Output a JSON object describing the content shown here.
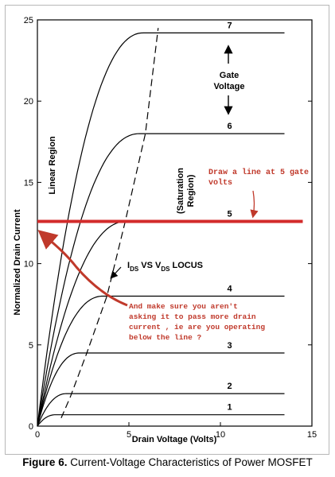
{
  "chart_data": {
    "type": "line",
    "title": "",
    "xlabel": "Drain Voltage (Volts)",
    "ylabel": "Normalized Drain Current",
    "xlim": [
      0,
      15
    ],
    "ylim": [
      0,
      25
    ],
    "xticks": [
      "0",
      "5",
      "10",
      "15"
    ],
    "yticks": [
      "0",
      "5",
      "10",
      "15",
      "20",
      "25"
    ],
    "grid": false,
    "series": [
      {
        "name": "1",
        "saturation_current": 0.7,
        "saturation_voltage": 1.0,
        "end_voltage": 13.5
      },
      {
        "name": "2",
        "saturation_current": 2.0,
        "saturation_voltage": 1.6,
        "end_voltage": 13.5
      },
      {
        "name": "3",
        "saturation_current": 4.5,
        "saturation_voltage": 2.3,
        "end_voltage": 13.5
      },
      {
        "name": "4",
        "saturation_current": 8.0,
        "saturation_voltage": 3.6,
        "end_voltage": 13.5
      },
      {
        "name": "5",
        "saturation_current": 12.6,
        "saturation_voltage": 4.9,
        "end_voltage": 13.5
      },
      {
        "name": "6",
        "saturation_current": 18.0,
        "saturation_voltage": 5.6,
        "end_voltage": 13.5
      },
      {
        "name": "7",
        "saturation_current": 24.2,
        "saturation_voltage": 5.8,
        "end_voltage": 13.5
      }
    ],
    "locus": {
      "style": "dashed",
      "x": [
        1.3,
        1.8,
        2.7,
        3.8,
        4.8,
        5.9,
        6.6
      ],
      "y": [
        0.5,
        1.8,
        4.5,
        8.0,
        12.6,
        18.0,
        24.5
      ]
    },
    "reference_line": {
      "y": 12.6,
      "x": [
        0,
        14.5
      ],
      "color": "#d32b2b"
    },
    "annotations": {
      "linear_region": "Linear Region",
      "saturation_region": [
        "(Saturation",
        "Region)"
      ],
      "gate_voltage": [
        "Gate",
        "Voltage"
      ],
      "locus_label": {
        "i": "I",
        "ds": "DS",
        "vs": " VS V",
        "ds2": "DS",
        "locus": " LOCUS"
      },
      "red_note_top": [
        "Draw a line at 5 gate",
        "volts"
      ],
      "red_note_bottom": [
        "And make sure you aren't",
        "asking it to pass more drain",
        "current , ie are you operating",
        "below the line ?"
      ]
    },
    "colors": {
      "curve": "#000000",
      "annotation": "#c0392b"
    }
  },
  "caption": {
    "figure": "Figure 6.",
    "text": " Current-Voltage Characteristics of Power MOSFET"
  }
}
